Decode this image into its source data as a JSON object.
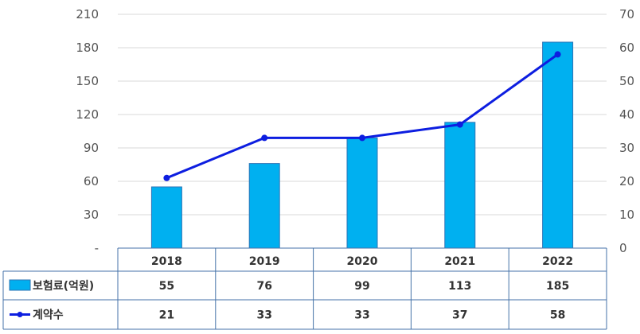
{
  "chart_data": {
    "type": "bar",
    "categories": [
      "2018",
      "2019",
      "2020",
      "2021",
      "2022"
    ],
    "series": [
      {
        "name": "보험료(억원)",
        "type": "bar",
        "axis": "left",
        "values": [
          55,
          76,
          99,
          113,
          185
        ],
        "color": "#00b0f0"
      },
      {
        "name": "계약수",
        "type": "line",
        "axis": "right",
        "values": [
          21,
          33,
          33,
          37,
          58
        ],
        "color": "#0d1ee0"
      }
    ],
    "y_left": {
      "ylim": [
        0,
        210
      ],
      "ticks": [
        "-",
        "30",
        "60",
        "90",
        "120",
        "150",
        "180",
        "210"
      ]
    },
    "y_right": {
      "ylim": [
        0,
        70
      ],
      "ticks": [
        "0",
        "10",
        "20",
        "30",
        "40",
        "50",
        "60",
        "70"
      ]
    },
    "grid": true,
    "legend": "data-table"
  }
}
